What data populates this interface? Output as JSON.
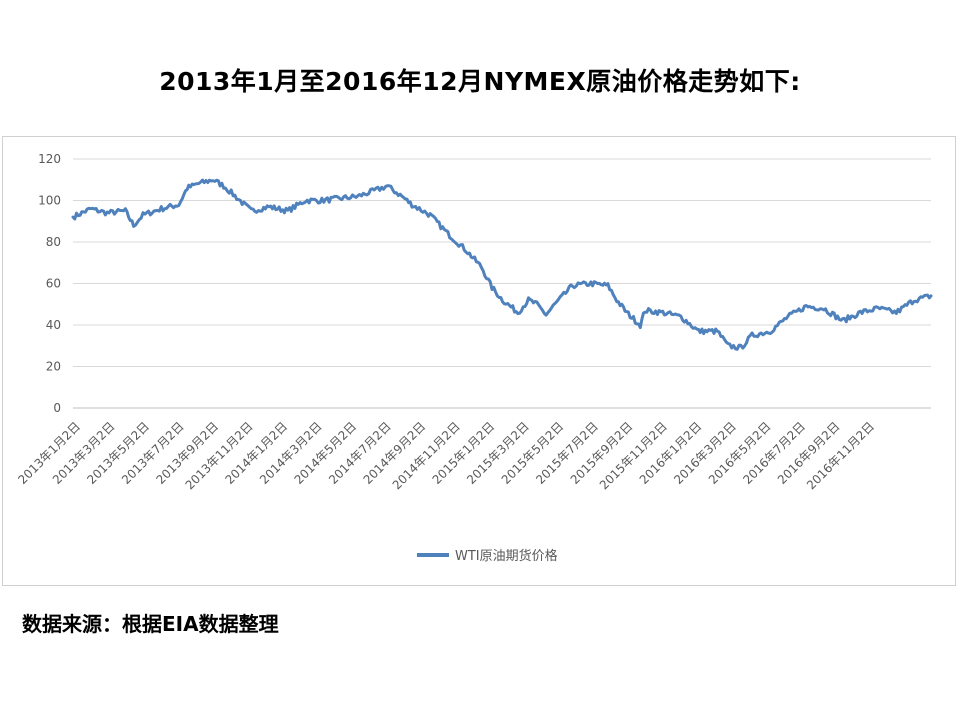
{
  "page": {
    "title": "2013年1月至2016年12月NYMEX原油价格走势如下:",
    "source": "数据来源：根据EIA数据整理"
  },
  "chart_data": {
    "type": "line",
    "title": "",
    "xlabel": "",
    "ylabel": "",
    "ylim": [
      0,
      120
    ],
    "yticks": [
      0,
      20,
      40,
      60,
      80,
      100,
      120
    ],
    "grid": "horizontal",
    "legend_position": "bottom-center",
    "line_color": "#4f81bd",
    "x_tick_labels": [
      "2013年1月2日",
      "2013年3月2日",
      "2013年5月2日",
      "2013年7月2日",
      "2013年9月2日",
      "2013年11月2日",
      "2014年1月2日",
      "2014年3月2日",
      "2014年5月2日",
      "2014年7月2日",
      "2014年9月2日",
      "2014年11月2日",
      "2015年1月2日",
      "2015年3月2日",
      "2015年5月2日",
      "2015年7月2日",
      "2015年9月2日",
      "2015年11月2日",
      "2016年1月2日",
      "2016年3月2日",
      "2016年5月2日",
      "2016年7月2日",
      "2016年9月2日",
      "2016年11月2日"
    ],
    "series": [
      {
        "name": "WTI原油期货价格",
        "x": [
          "2013-01-02",
          "2013-02-01",
          "2013-03-01",
          "2013-04-01",
          "2013-04-15",
          "2013-05-01",
          "2013-06-01",
          "2013-07-01",
          "2013-07-15",
          "2013-08-01",
          "2013-08-28",
          "2013-09-15",
          "2013-10-01",
          "2013-11-01",
          "2013-12-01",
          "2014-01-02",
          "2014-02-01",
          "2014-03-01",
          "2014-04-01",
          "2014-05-01",
          "2014-06-01",
          "2014-06-20",
          "2014-07-15",
          "2014-08-01",
          "2014-09-01",
          "2014-10-01",
          "2014-11-01",
          "2014-11-27",
          "2014-12-15",
          "2015-01-02",
          "2015-01-28",
          "2015-02-15",
          "2015-03-01",
          "2015-03-17",
          "2015-04-01",
          "2015-05-01",
          "2015-06-01",
          "2015-06-30",
          "2015-07-15",
          "2015-08-01",
          "2015-08-24",
          "2015-09-01",
          "2015-10-01",
          "2015-11-01",
          "2015-12-01",
          "2016-01-02",
          "2016-01-20",
          "2016-02-11",
          "2016-03-01",
          "2016-04-01",
          "2016-05-01",
          "2016-06-01",
          "2016-07-01",
          "2016-08-02",
          "2016-09-01",
          "2016-10-01",
          "2016-11-01",
          "2016-12-01",
          "2016-12-30"
        ],
        "values": [
          92,
          96,
          94,
          95,
          88,
          93,
          96,
          98,
          106,
          108,
          110,
          107,
          103,
          95,
          97,
          95,
          100,
          100,
          101,
          102,
          105,
          107,
          102,
          98,
          93,
          84,
          76,
          68,
          58,
          52,
          46,
          52,
          50,
          45,
          50,
          59,
          60,
          59,
          52,
          46,
          40,
          47,
          46,
          44,
          37,
          37,
          30,
          29,
          35,
          37,
          44,
          49,
          48,
          42,
          46,
          48,
          46,
          52,
          54
        ]
      }
    ]
  }
}
